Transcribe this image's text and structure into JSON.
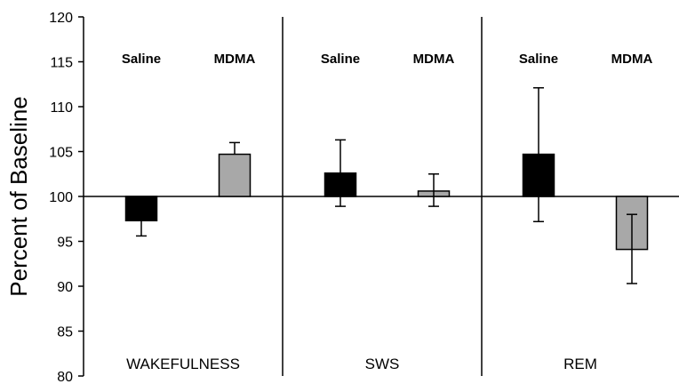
{
  "chart_data": {
    "type": "bar",
    "ylabel": "Percent of Baseline",
    "xlabel": "",
    "ylim": [
      80,
      120
    ],
    "yticks": [
      80,
      85,
      90,
      95,
      100,
      105,
      110,
      115,
      120
    ],
    "baseline": 100,
    "groups": [
      {
        "label": "WAKEFULNESS",
        "bars": [
          {
            "condition": "Saline",
            "value": 97.3,
            "error_low": 95.6,
            "error_high": null
          },
          {
            "condition": "MDMA",
            "value": 104.7,
            "error_low": null,
            "error_high": 106.0
          }
        ]
      },
      {
        "label": "SWS",
        "bars": [
          {
            "condition": "Saline",
            "value": 102.6,
            "error_low": 98.9,
            "error_high": 106.3
          },
          {
            "condition": "MDMA",
            "value": 100.6,
            "error_low": 98.9,
            "error_high": 102.5
          }
        ]
      },
      {
        "label": "REM",
        "bars": [
          {
            "condition": "Saline",
            "value": 104.7,
            "error_low": 97.2,
            "error_high": 112.1
          },
          {
            "condition": "MDMA",
            "value": 94.1,
            "error_low": 90.3,
            "error_high": 98.0
          }
        ]
      }
    ],
    "series": [
      {
        "name": "Saline",
        "color": "#000000"
      },
      {
        "name": "MDMA",
        "color": "#a8a8a8"
      }
    ],
    "grid": false,
    "legend": "none"
  }
}
